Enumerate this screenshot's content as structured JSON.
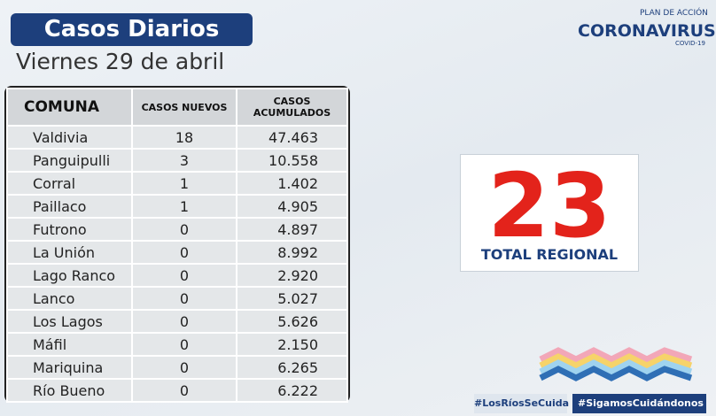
{
  "header": {
    "title": "Casos Diarios",
    "date": "Viernes 29 de abril"
  },
  "logo": {
    "top": "PLAN DE ACCIÓN",
    "main": "CORONAVIRUS",
    "bottom": "COVID-19"
  },
  "table": {
    "columns": [
      "COMUNA",
      "CASOS NUEVOS",
      "CASOS ACUMULADOS"
    ],
    "rows": [
      [
        "Valdivia",
        "18",
        "47.463"
      ],
      [
        "Panguipulli",
        "3",
        "10.558"
      ],
      [
        "Corral",
        "1",
        "1.402"
      ],
      [
        "Paillaco",
        "1",
        "4.905"
      ],
      [
        "Futrono",
        "0",
        "4.897"
      ],
      [
        "La Unión",
        "0",
        "8.992"
      ],
      [
        "Lago Ranco",
        "0",
        "2.920"
      ],
      [
        "Lanco",
        "0",
        "5.027"
      ],
      [
        "Los Lagos",
        "0",
        "5.626"
      ],
      [
        "Máfil",
        "0",
        "2.150"
      ],
      [
        "Mariquina",
        "0",
        "6.265"
      ],
      [
        "Río Bueno",
        "0",
        "6.222"
      ]
    ]
  },
  "total": {
    "value": "23",
    "label": "TOTAL REGIONAL"
  },
  "hashtags": [
    "#LosRíosSeCuida",
    "#SigamosCuidándonos"
  ]
}
